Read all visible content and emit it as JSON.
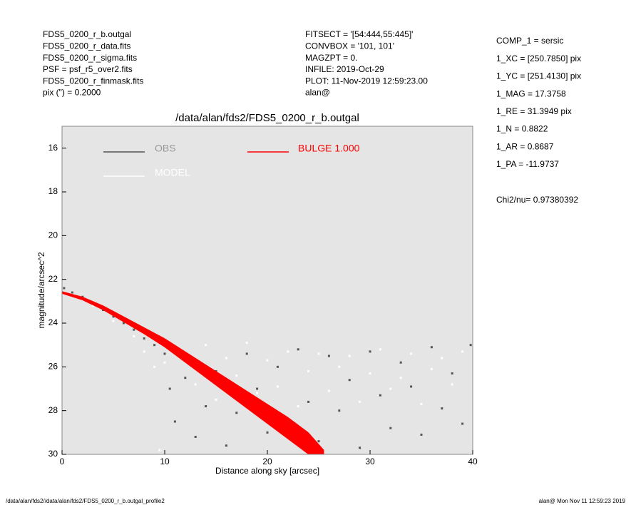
{
  "header": {
    "left": [
      "FDS5_0200_r_b.outgal",
      "FDS5_0200_r_data.fits",
      "FDS5_0200_r_sigma.fits",
      "PSF     = psf_r5_over2.fits",
      "FDS5_0200_r_finmask.fits",
      "pix (\") =  0.2000"
    ],
    "middle": [
      "FITSECT = '[54:444,55:445]'",
      "CONVBOX = '101, 101'",
      "MAGZPT  =               0.",
      "INFILE: 2019-Oct-29",
      "PLOT: 11-Nov-2019 12:59:23.00",
      "alan@"
    ],
    "right": [
      "COMP_1  = sersic",
      "1_XC    = [250.7850] pix",
      "1_YC    = [251.4130] pix",
      "1_MAG   = 17.3758",
      "1_RE    = 31.3949 pix",
      "1_N     = 0.8822",
      "1_AR    = 0.8687",
      "1_PA    = -11.9737"
    ],
    "chi": "Chi2/nu=      0.97380392"
  },
  "footer": {
    "left": "/data/alan/fds2//data/alan/fds2/FDS5_0200_r_b.outgal_profile2",
    "right": "alan@  Mon Nov 11 12:59:23 2019"
  },
  "chart_data": {
    "type": "scatter",
    "title": "/data/alan/fds2/FDS5_0200_r_b.outgal",
    "x_label": "Distance along sky [arcsec]",
    "y_label": "magnitude/arcsec^2",
    "xlim": [
      0,
      40
    ],
    "xticks": [
      0,
      10,
      20,
      30,
      40
    ],
    "ylim": [
      30,
      15
    ],
    "yticks": [
      16,
      18,
      20,
      22,
      24,
      26,
      28,
      30
    ],
    "background": "#e5e5e5",
    "series": [
      {
        "name": "OBS",
        "color": "#555555",
        "x": [
          0.2,
          1,
          2,
          3,
          4,
          5,
          6,
          7,
          8,
          9,
          10,
          10.5,
          11,
          12,
          13,
          14,
          15,
          16,
          17,
          18,
          19,
          20,
          21,
          22,
          23,
          24,
          25,
          26,
          27,
          28,
          29,
          30,
          31,
          32,
          33,
          34,
          35,
          36,
          37,
          38,
          39,
          39.8
        ],
        "values": [
          22.4,
          22.6,
          22.8,
          23.1,
          23.4,
          23.7,
          24.0,
          24.3,
          24.7,
          25.0,
          25.4,
          27,
          28.5,
          26.5,
          29.2,
          27.8,
          26.2,
          29.6,
          28.1,
          25.4,
          27.0,
          29.0,
          26.0,
          28.4,
          25.2,
          27.6,
          29.4,
          25.5,
          28.0,
          26.6,
          29.7,
          25.3,
          27.3,
          28.8,
          25.8,
          26.9,
          29.1,
          25.1,
          27.9,
          26.3,
          28.6,
          25.0
        ]
      },
      {
        "name": "MODEL",
        "color": "#ffffff",
        "x": [
          1,
          3,
          5,
          7,
          8,
          9,
          9.5,
          10,
          12,
          13,
          14,
          15,
          16,
          17,
          18,
          19,
          20,
          21,
          22,
          23,
          24,
          25,
          26,
          27,
          28,
          29,
          30,
          31,
          32,
          33,
          34,
          35,
          36,
          37,
          38,
          39
        ],
        "values": [
          22.7,
          23.2,
          23.9,
          24.6,
          25.3,
          26.0,
          29.8,
          25.8,
          25.4,
          26.8,
          25.0,
          27.5,
          25.6,
          26.4,
          24.9,
          27.2,
          25.7,
          26.9,
          25.3,
          27.8,
          26.2,
          25.4,
          27.1,
          26.0,
          25.5,
          27.6,
          26.3,
          25.2,
          27.0,
          26.5,
          25.4,
          27.7,
          26.1,
          25.6,
          26.8,
          25.3
        ]
      },
      {
        "name": "BULGE  1.000",
        "color": "#ff0000",
        "x": [
          0,
          2,
          4,
          6,
          8,
          10,
          12,
          14,
          16,
          18,
          20,
          22,
          24,
          25.5
        ],
        "values": [
          22.55,
          22.8,
          23.2,
          23.7,
          24.2,
          24.7,
          25.3,
          25.9,
          26.5,
          27.1,
          27.7,
          28.3,
          29.0,
          29.8
        ],
        "values_bottom": [
          22.65,
          22.95,
          23.4,
          23.95,
          24.5,
          25.1,
          25.8,
          26.5,
          27.2,
          27.9,
          28.6,
          29.3,
          30.0,
          30.0
        ]
      }
    ]
  }
}
